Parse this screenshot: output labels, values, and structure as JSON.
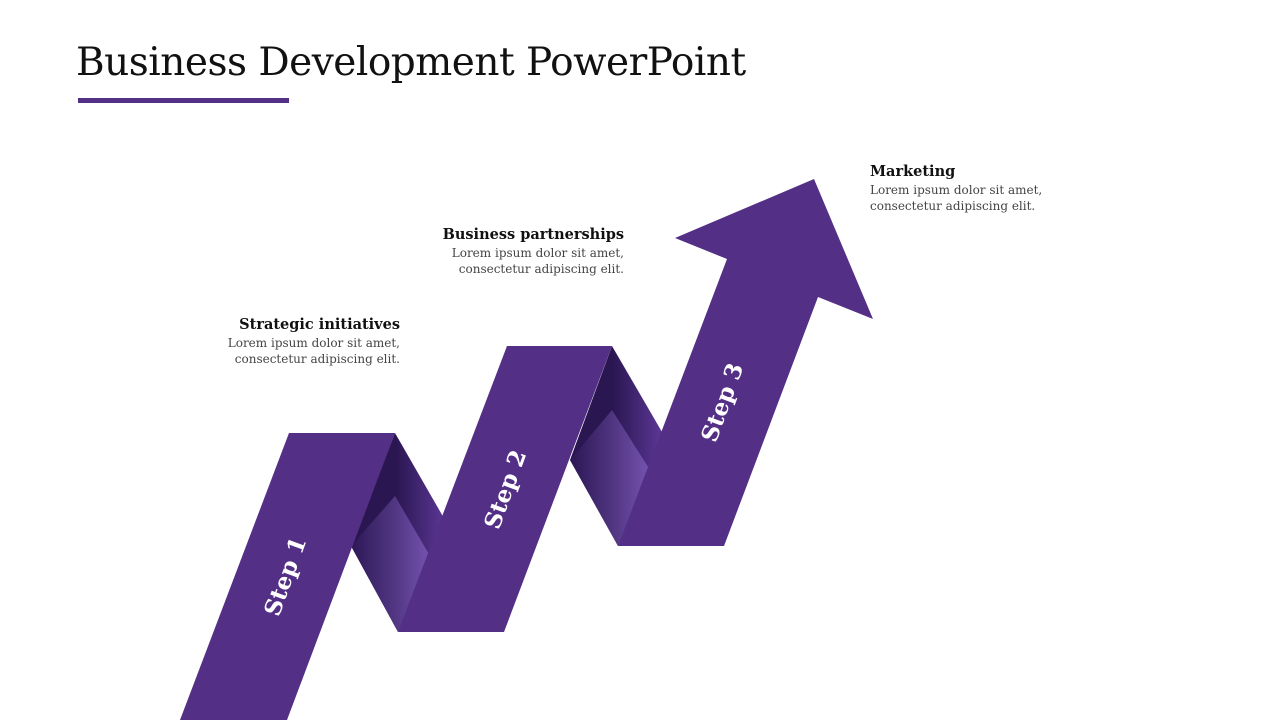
{
  "slide": {
    "title": "Business Development PowerPoint",
    "accent_color": "#532f86"
  },
  "steps": [
    {
      "label": "Step 1",
      "heading": "Strategic initiatives",
      "description_line1": "Lorem ipsum dolor sit amet,",
      "description_line2": "consectetur adipiscing elit."
    },
    {
      "label": "Step 2",
      "heading": "Business partnerships",
      "description_line1": "Lorem ipsum dolor sit amet,",
      "description_line2": "consectetur adipiscing elit."
    },
    {
      "label": "Step 3",
      "heading": "Marketing",
      "description_line1": "Lorem ipsum dolor sit amet,",
      "description_line2": "consectetur adipiscing elit."
    }
  ],
  "colors": {
    "ribbon": "#532f86",
    "fold_dark": "#2a1650",
    "fold_light": "#7c5ab8",
    "label_text": "#ffffff"
  }
}
